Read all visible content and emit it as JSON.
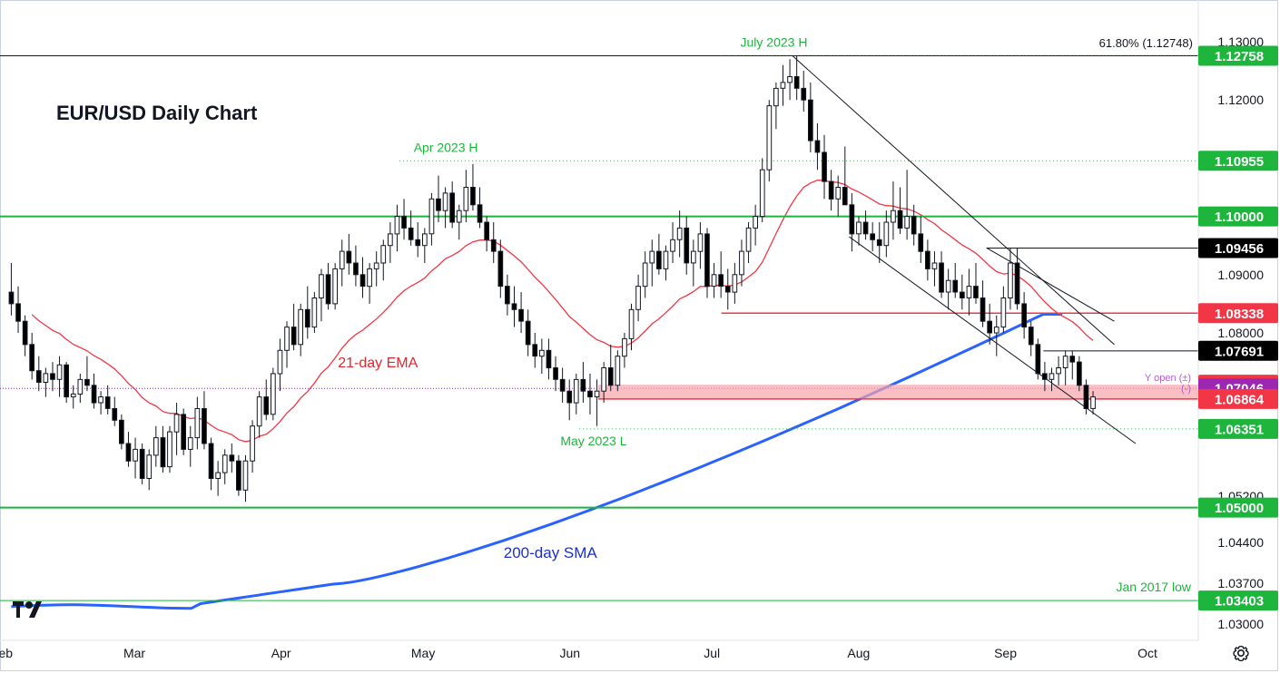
{
  "chart_data": {
    "type": "candlestick",
    "title": "EUR/USD Daily Chart",
    "ylim": [
      1.027,
      1.136
    ],
    "y_ticks": [
      {
        "label": "1.13000",
        "value": 1.13
      },
      {
        "label": "1.12000",
        "value": 1.12
      },
      {
        "label": "1.09000",
        "value": 1.09
      },
      {
        "label": "1.08000",
        "value": 1.08
      },
      {
        "label": "1.05200",
        "value": 1.052
      },
      {
        "label": "1.04400",
        "value": 1.044
      },
      {
        "label": "1.03700",
        "value": 1.037
      },
      {
        "label": "1.03000",
        "value": 1.03
      }
    ],
    "x_ticks": [
      {
        "label": "Feb",
        "day": -2
      },
      {
        "label": "Mar",
        "day": 26
      },
      {
        "label": "Apr",
        "day": 57
      },
      {
        "label": "May",
        "day": 87
      },
      {
        "label": "Jun",
        "day": 118
      },
      {
        "label": "Jul",
        "day": 148
      },
      {
        "label": "Aug",
        "day": 179
      },
      {
        "label": "Sep",
        "day": 210
      },
      {
        "label": "Oct",
        "day": 240
      }
    ],
    "price_labels": [
      {
        "value": 1.12758,
        "label": "1.12758",
        "bg": "#1db53c",
        "fg": "#ffffff"
      },
      {
        "value": 1.10955,
        "label": "1.10955",
        "bg": "#1db53c",
        "fg": "#ffffff"
      },
      {
        "value": 1.1,
        "label": "1.10000",
        "bg": "#1db53c",
        "fg": "#ffffff"
      },
      {
        "value": 1.09456,
        "label": "1.09456",
        "bg": "#000000",
        "fg": "#ffffff"
      },
      {
        "value": 1.08338,
        "label": "1.08338",
        "bg": "#f23645",
        "fg": "#ffffff"
      },
      {
        "value": 1.07691,
        "label": "1.07691",
        "bg": "#000000",
        "fg": "#ffffff"
      },
      {
        "value": 1.0711,
        "label": "1.07110",
        "bg": "#f23645",
        "fg": "#ffffff"
      },
      {
        "value": 1.07046,
        "label": "1.07046",
        "bg": "#9c27b0",
        "fg": "#ffffff"
      },
      {
        "value": 1.06864,
        "label": "1.06864",
        "bg": "#f23645",
        "fg": "#ffffff"
      },
      {
        "value": 1.06351,
        "label": "1.06351",
        "bg": "#1db53c",
        "fg": "#ffffff"
      },
      {
        "value": 1.05,
        "label": "1.05000",
        "bg": "#1db53c",
        "fg": "#ffffff"
      },
      {
        "value": 1.03403,
        "label": "1.03403",
        "bg": "#1db53c",
        "fg": "#ffffff"
      }
    ],
    "levels": [
      {
        "name": "July 2023 H",
        "value": 1.12758,
        "style": "solid-black",
        "label": "July 2023 H",
        "label_color": "#1db53c"
      },
      {
        "name": "61.8% fib",
        "value": 1.12748,
        "style": "dotted-green",
        "label": "61.80% (1.12748)",
        "label_color": "#131722"
      },
      {
        "name": "Apr 2023 H",
        "value": 1.10955,
        "style": "dotted-green",
        "label": "Apr 2023 H",
        "label_color": "#1db53c"
      },
      {
        "name": "1.10000",
        "value": 1.1,
        "style": "solid-green",
        "label": "",
        "label_color": "#1db53c"
      },
      {
        "name": "May 2023 L",
        "value": 1.06351,
        "style": "dotted-green",
        "label": "May 2023 L",
        "label_color": "#1db53c"
      },
      {
        "name": "1.05000",
        "value": 1.05,
        "style": "solid-green",
        "label": "",
        "label_color": "#1db53c"
      },
      {
        "name": "Jan 2017 low",
        "value": 1.03403,
        "style": "solid-green",
        "label": "Jan 2017 low",
        "label_color": "#1db53c"
      }
    ],
    "annotations": {
      "ema_label": "21-day EMA",
      "sma_label": "200-day SMA",
      "yopen_label": "Y open (±)",
      "yopen_sub": "(-)"
    },
    "series_colors": {
      "up": "#ffffff",
      "down": "#000000",
      "ema": "#f23645",
      "sma": "#2962ff",
      "levels": "#1db53c"
    },
    "candles_ohlc": [
      [
        1.087,
        1.092,
        1.083,
        1.085
      ],
      [
        1.085,
        1.088,
        1.08,
        1.082
      ],
      [
        1.082,
        1.083,
        1.076,
        1.078
      ],
      [
        1.078,
        1.08,
        1.072,
        1.0735
      ],
      [
        1.0735,
        1.076,
        1.07,
        1.0715
      ],
      [
        1.0715,
        1.074,
        1.069,
        1.073
      ],
      [
        1.073,
        1.075,
        1.07,
        1.072
      ],
      [
        1.072,
        1.076,
        1.069,
        1.0745
      ],
      [
        1.0745,
        1.075,
        1.068,
        1.069
      ],
      [
        1.069,
        1.071,
        1.067,
        1.0695
      ],
      [
        1.0695,
        1.073,
        1.068,
        1.072
      ],
      [
        1.072,
        1.076,
        1.07,
        1.071
      ],
      [
        1.071,
        1.073,
        1.067,
        1.068
      ],
      [
        1.068,
        1.07,
        1.066,
        1.069
      ],
      [
        1.069,
        1.071,
        1.066,
        1.067
      ],
      [
        1.067,
        1.069,
        1.064,
        1.065
      ],
      [
        1.065,
        1.066,
        1.06,
        1.061
      ],
      [
        1.061,
        1.063,
        1.057,
        1.058
      ],
      [
        1.058,
        1.062,
        1.055,
        1.06
      ],
      [
        1.06,
        1.061,
        1.054,
        1.055
      ],
      [
        1.055,
        1.06,
        1.053,
        1.059
      ],
      [
        1.059,
        1.064,
        1.057,
        1.062
      ],
      [
        1.062,
        1.064,
        1.056,
        1.057
      ],
      [
        1.057,
        1.064,
        1.056,
        1.063
      ],
      [
        1.063,
        1.068,
        1.059,
        1.066
      ],
      [
        1.066,
        1.067,
        1.059,
        1.06
      ],
      [
        1.06,
        1.064,
        1.057,
        1.062
      ],
      [
        1.062,
        1.069,
        1.06,
        1.067
      ],
      [
        1.067,
        1.07,
        1.06,
        1.061
      ],
      [
        1.061,
        1.062,
        1.053,
        1.055
      ],
      [
        1.055,
        1.058,
        1.052,
        1.056
      ],
      [
        1.056,
        1.06,
        1.054,
        1.059
      ],
      [
        1.059,
        1.061,
        1.056,
        1.058
      ],
      [
        1.058,
        1.059,
        1.052,
        1.053
      ],
      [
        1.053,
        1.059,
        1.051,
        1.058
      ],
      [
        1.058,
        1.065,
        1.056,
        1.064
      ],
      [
        1.064,
        1.07,
        1.062,
        1.069
      ],
      [
        1.069,
        1.072,
        1.065,
        1.066
      ],
      [
        1.066,
        1.074,
        1.065,
        1.073
      ],
      [
        1.073,
        1.079,
        1.07,
        1.077
      ],
      [
        1.077,
        1.082,
        1.074,
        1.081
      ],
      [
        1.081,
        1.085,
        1.077,
        1.078
      ],
      [
        1.078,
        1.085,
        1.076,
        1.084
      ],
      [
        1.084,
        1.088,
        1.079,
        1.081
      ],
      [
        1.081,
        1.087,
        1.08,
        1.086
      ],
      [
        1.086,
        1.091,
        1.082,
        1.09
      ],
      [
        1.09,
        1.092,
        1.084,
        1.085
      ],
      [
        1.085,
        1.092,
        1.084,
        1.091
      ],
      [
        1.091,
        1.096,
        1.088,
        1.094
      ],
      [
        1.094,
        1.097,
        1.09,
        1.092
      ],
      [
        1.092,
        1.095,
        1.088,
        1.09
      ],
      [
        1.09,
        1.093,
        1.086,
        1.088
      ],
      [
        1.088,
        1.092,
        1.085,
        1.091
      ],
      [
        1.091,
        1.094,
        1.088,
        1.092
      ],
      [
        1.092,
        1.096,
        1.089,
        1.095
      ],
      [
        1.095,
        1.099,
        1.092,
        1.097
      ],
      [
        1.097,
        1.102,
        1.094,
        1.1
      ],
      [
        1.1,
        1.103,
        1.096,
        1.098
      ],
      [
        1.098,
        1.101,
        1.095,
        1.096
      ],
      [
        1.096,
        1.099,
        1.093,
        1.095
      ],
      [
        1.095,
        1.098,
        1.092,
        1.097
      ],
      [
        1.097,
        1.104,
        1.095,
        1.103
      ],
      [
        1.103,
        1.107,
        1.099,
        1.101
      ],
      [
        1.101,
        1.105,
        1.098,
        1.104
      ],
      [
        1.104,
        1.106,
        1.098,
        1.099
      ],
      [
        1.099,
        1.102,
        1.096,
        1.101
      ],
      [
        1.101,
        1.108,
        1.099,
        1.105
      ],
      [
        1.105,
        1.109,
        1.101,
        1.102
      ],
      [
        1.102,
        1.105,
        1.098,
        1.099
      ],
      [
        1.099,
        1.1,
        1.094,
        1.096
      ],
      [
        1.096,
        1.099,
        1.092,
        1.094
      ],
      [
        1.094,
        1.096,
        1.086,
        1.088
      ],
      [
        1.088,
        1.09,
        1.083,
        1.085
      ],
      [
        1.085,
        1.088,
        1.081,
        1.084
      ],
      [
        1.084,
        1.087,
        1.08,
        1.082
      ],
      [
        1.082,
        1.084,
        1.076,
        1.078
      ],
      [
        1.078,
        1.08,
        1.074,
        1.076
      ],
      [
        1.076,
        1.079,
        1.073,
        1.077
      ],
      [
        1.077,
        1.079,
        1.072,
        1.074
      ],
      [
        1.074,
        1.076,
        1.07,
        1.072
      ],
      [
        1.072,
        1.074,
        1.068,
        1.07
      ],
      [
        1.07,
        1.072,
        1.065,
        1.068
      ],
      [
        1.068,
        1.073,
        1.066,
        1.072
      ],
      [
        1.072,
        1.075,
        1.068,
        1.07
      ],
      [
        1.07,
        1.073,
        1.066,
        1.069
      ],
      [
        1.069,
        1.072,
        1.064,
        1.07
      ],
      [
        1.07,
        1.075,
        1.068,
        1.074
      ],
      [
        1.074,
        1.078,
        1.07,
        1.071
      ],
      [
        1.071,
        1.077,
        1.07,
        1.076
      ],
      [
        1.076,
        1.08,
        1.074,
        1.079
      ],
      [
        1.079,
        1.085,
        1.077,
        1.084
      ],
      [
        1.084,
        1.09,
        1.082,
        1.088
      ],
      [
        1.088,
        1.094,
        1.086,
        1.092
      ],
      [
        1.092,
        1.096,
        1.088,
        1.094
      ],
      [
        1.094,
        1.097,
        1.09,
        1.091
      ],
      [
        1.091,
        1.095,
        1.089,
        1.094
      ],
      [
        1.094,
        1.099,
        1.092,
        1.096
      ],
      [
        1.096,
        1.101,
        1.093,
        1.098
      ],
      [
        1.098,
        1.1,
        1.09,
        1.092
      ],
      [
        1.092,
        1.096,
        1.088,
        1.094
      ],
      [
        1.094,
        1.099,
        1.091,
        1.097
      ],
      [
        1.097,
        1.098,
        1.086,
        1.088
      ],
      [
        1.088,
        1.092,
        1.086,
        1.09
      ],
      [
        1.09,
        1.094,
        1.086,
        1.088
      ],
      [
        1.088,
        1.091,
        1.084,
        1.087
      ],
      [
        1.087,
        1.092,
        1.085,
        1.09
      ],
      [
        1.09,
        1.096,
        1.088,
        1.094
      ],
      [
        1.094,
        1.099,
        1.092,
        1.098
      ],
      [
        1.098,
        1.102,
        1.095,
        1.1
      ],
      [
        1.1,
        1.11,
        1.099,
        1.108
      ],
      [
        1.108,
        1.12,
        1.106,
        1.119
      ],
      [
        1.119,
        1.123,
        1.115,
        1.122
      ],
      [
        1.122,
        1.126,
        1.119,
        1.123
      ],
      [
        1.123,
        1.127,
        1.12,
        1.124
      ],
      [
        1.124,
        1.1276,
        1.12,
        1.122
      ],
      [
        1.122,
        1.125,
        1.118,
        1.12
      ],
      [
        1.12,
        1.123,
        1.111,
        1.113
      ],
      [
        1.113,
        1.116,
        1.108,
        1.111
      ],
      [
        1.111,
        1.114,
        1.103,
        1.106
      ],
      [
        1.106,
        1.108,
        1.101,
        1.103
      ],
      [
        1.103,
        1.107,
        1.1,
        1.105
      ],
      [
        1.105,
        1.112,
        1.102,
        1.102
      ],
      [
        1.102,
        1.104,
        1.094,
        1.097
      ],
      [
        1.097,
        1.1,
        1.095,
        1.099
      ],
      [
        1.099,
        1.101,
        1.096,
        1.097
      ],
      [
        1.097,
        1.099,
        1.094,
        1.096
      ],
      [
        1.096,
        1.099,
        1.092,
        1.095
      ],
      [
        1.095,
        1.101,
        1.093,
        1.099
      ],
      [
        1.099,
        1.106,
        1.096,
        1.101
      ],
      [
        1.101,
        1.105,
        1.097,
        1.098
      ],
      [
        1.098,
        1.108,
        1.096,
        1.1
      ],
      [
        1.1,
        1.102,
        1.095,
        1.097
      ],
      [
        1.097,
        1.1,
        1.092,
        1.094
      ],
      [
        1.094,
        1.096,
        1.089,
        1.091
      ],
      [
        1.091,
        1.094,
        1.088,
        1.092
      ],
      [
        1.092,
        1.094,
        1.086,
        1.087
      ],
      [
        1.087,
        1.091,
        1.084,
        1.089
      ],
      [
        1.089,
        1.092,
        1.086,
        1.087
      ],
      [
        1.087,
        1.09,
        1.084,
        1.086
      ],
      [
        1.086,
        1.091,
        1.083,
        1.088
      ],
      [
        1.088,
        1.092,
        1.085,
        1.086
      ],
      [
        1.086,
        1.089,
        1.081,
        1.082
      ],
      [
        1.082,
        1.085,
        1.078,
        1.08
      ],
      [
        1.08,
        1.083,
        1.076,
        1.081
      ],
      [
        1.081,
        1.088,
        1.08,
        1.086
      ],
      [
        1.086,
        1.0946,
        1.084,
        1.092
      ],
      [
        1.092,
        1.0946,
        1.084,
        1.085
      ],
      [
        1.085,
        1.087,
        1.079,
        1.081
      ],
      [
        1.081,
        1.082,
        1.076,
        1.078
      ],
      [
        1.078,
        1.079,
        1.072,
        1.073
      ],
      [
        1.073,
        1.075,
        1.07,
        1.072
      ],
      [
        1.072,
        1.074,
        1.07,
        1.073
      ],
      [
        1.073,
        1.076,
        1.071,
        1.074
      ],
      [
        1.074,
        1.0769,
        1.071,
        1.076
      ],
      [
        1.076,
        1.0769,
        1.072,
        1.075
      ],
      [
        1.075,
        1.076,
        1.07,
        1.071
      ],
      [
        1.071,
        1.072,
        1.066,
        1.067
      ],
      [
        1.067,
        1.07,
        1.066,
        1.069
      ]
    ]
  }
}
